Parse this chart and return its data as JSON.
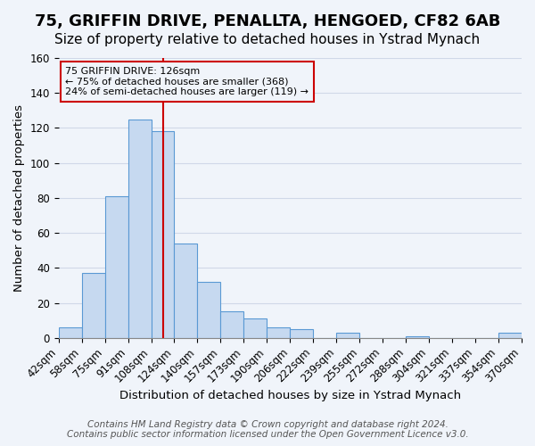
{
  "title": "75, GRIFFIN DRIVE, PENALLTA, HENGOED, CF82 6AB",
  "subtitle": "Size of property relative to detached houses in Ystrad Mynach",
  "xlabel": "Distribution of detached houses by size in Ystrad Mynach",
  "ylabel": "Number of detached properties",
  "footer_line1": "Contains HM Land Registry data © Crown copyright and database right 2024.",
  "footer_line2": "Contains public sector information licensed under the Open Government Licence v3.0.",
  "bin_labels": [
    "42sqm",
    "58sqm",
    "75sqm",
    "91sqm",
    "108sqm",
    "124sqm",
    "140sqm",
    "157sqm",
    "173sqm",
    "190sqm",
    "206sqm",
    "222sqm",
    "239sqm",
    "255sqm",
    "272sqm",
    "288sqm",
    "304sqm",
    "321sqm",
    "337sqm",
    "354sqm",
    "370sqm"
  ],
  "bar_values": [
    6,
    37,
    81,
    125,
    118,
    54,
    32,
    15,
    11,
    6,
    5,
    0,
    3,
    0,
    0,
    1,
    0,
    0,
    0,
    3
  ],
  "bar_color": "#c6d9f0",
  "bar_edge_color": "#5a99d4",
  "annotation_box_text": "75 GRIFFIN DRIVE: 126sqm\n← 75% of detached houses are smaller (368)\n24% of semi-detached houses are larger (119) →",
  "annotation_box_edge_color": "#cc0000",
  "annotation_line_color": "#cc0000",
  "vline_pos": 4.5,
  "ylim": [
    0,
    160
  ],
  "yticks": [
    0,
    20,
    40,
    60,
    80,
    100,
    120,
    140,
    160
  ],
  "background_color": "#f0f4fa",
  "grid_color": "#d0d8e8",
  "title_fontsize": 13,
  "subtitle_fontsize": 11,
  "axis_label_fontsize": 9.5,
  "tick_fontsize": 8.5,
  "footer_fontsize": 7.5
}
